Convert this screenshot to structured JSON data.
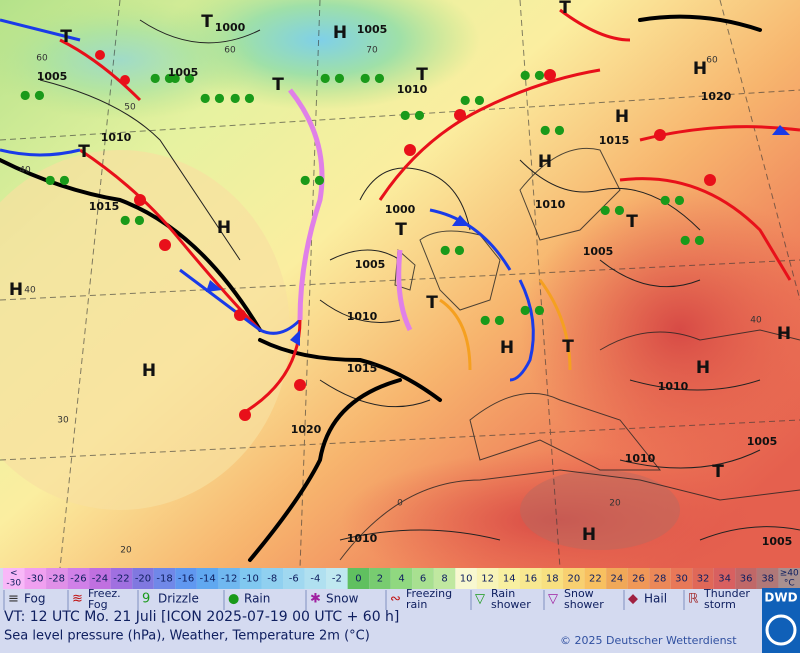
{
  "map": {
    "pressure_labels": [
      "1000",
      "1005",
      "1005",
      "1005",
      "1010",
      "1010",
      "1015",
      "1015",
      "1000",
      "1005",
      "1010",
      "1015",
      "1020",
      "1010",
      "1005",
      "1010",
      "1010",
      "1005",
      "1010",
      "1005",
      "1020"
    ],
    "temperature_labels": [
      "60",
      "60",
      "70",
      "50",
      "40",
      "40",
      "30",
      "20",
      "0",
      "20",
      "40",
      "60"
    ],
    "pressure_systems": [
      "T",
      "H",
      "T",
      "T",
      "T",
      "H",
      "H",
      "T",
      "H",
      "H",
      "T",
      "T",
      "H",
      "T",
      "H",
      "T",
      "H",
      "H",
      "H",
      "T",
      "H",
      "T"
    ]
  },
  "legend": {
    "scale": [
      {
        "label": "-30",
        "color": "#f0a0f0"
      },
      {
        "label": "-28",
        "color": "#e090e8"
      },
      {
        "label": "-26",
        "color": "#d080e8"
      },
      {
        "label": "-24",
        "color": "#c070e0"
      },
      {
        "label": "-22",
        "color": "#a070e0"
      },
      {
        "label": "-20",
        "color": "#8078e0"
      },
      {
        "label": "-18",
        "color": "#7088e8"
      },
      {
        "label": "-16",
        "color": "#6098f0"
      },
      {
        "label": "-14",
        "color": "#60a8f0"
      },
      {
        "label": "-12",
        "color": "#70b8f0"
      },
      {
        "label": "-10",
        "color": "#80c8f0"
      },
      {
        "label": "-8",
        "color": "#90d0f0"
      },
      {
        "label": "-6",
        "color": "#a0d8f0"
      },
      {
        "label": "-4",
        "color": "#b0e0f0"
      },
      {
        "label": "-2",
        "color": "#c0e8f0"
      },
      {
        "label": "0",
        "color": "#60c060"
      },
      {
        "label": "2",
        "color": "#78cc70"
      },
      {
        "label": "4",
        "color": "#90d880"
      },
      {
        "label": "6",
        "color": "#a8e090"
      },
      {
        "label": "8",
        "color": "#c0e8a0"
      },
      {
        "label": "10",
        "color": "#f8f8d0"
      },
      {
        "label": "12",
        "color": "#f8f4b8"
      },
      {
        "label": "14",
        "color": "#f8f0a0"
      },
      {
        "label": "16",
        "color": "#f8e890"
      },
      {
        "label": "18",
        "color": "#f8e080"
      },
      {
        "label": "20",
        "color": "#f8d070"
      },
      {
        "label": "22",
        "color": "#f8c060"
      },
      {
        "label": "24",
        "color": "#f0a858"
      },
      {
        "label": "26",
        "color": "#f09858"
      },
      {
        "label": "28",
        "color": "#ec8858"
      },
      {
        "label": "30",
        "color": "#e87858"
      },
      {
        "label": "32",
        "color": "#e06858"
      },
      {
        "label": "34",
        "color": "#d86060"
      },
      {
        "label": "36",
        "color": "#c06868"
      },
      {
        "label": "38",
        "color": "#b07878"
      }
    ],
    "low_end": {
      "top": "<",
      "bottom": "-30",
      "color": "#f8b8f8"
    },
    "high_end": {
      "top": "≥40",
      "bottom": "°C",
      "color": "#a89090"
    },
    "weather": [
      {
        "lines": [
          "Fog"
        ],
        "symbol": "≡",
        "color": "#333"
      },
      {
        "lines": [
          "Freez.",
          "Fog"
        ],
        "symbol": "≋",
        "color": "#c01010"
      },
      {
        "lines": [
          "Drizzle"
        ],
        "symbol": "9",
        "color": "#1a9a1a"
      },
      {
        "lines": [
          "Rain"
        ],
        "symbol": "●",
        "color": "#1a9a1a"
      },
      {
        "lines": [
          "Snow"
        ],
        "symbol": "✱",
        "color": "#a020a0"
      },
      {
        "lines": [
          "Freezing",
          "rain"
        ],
        "symbol": "∾",
        "color": "#c01010"
      },
      {
        "lines": [
          "Rain",
          "shower"
        ],
        "symbol": "▽",
        "color": "#1a9a1a"
      },
      {
        "lines": [
          "Snow",
          "shower"
        ],
        "symbol": "▽",
        "color": "#a020a0"
      },
      {
        "lines": [
          "Hail"
        ],
        "symbol": "◆",
        "color": "#a02040"
      },
      {
        "lines": [
          "Thunder",
          "storm"
        ],
        "symbol": "ℝ",
        "color": "#a02020"
      }
    ]
  },
  "footer": {
    "valid_time": "VT: 12 UTC Mo.  21 Juli [ICON 2025-07-19  00 UTC + 60 h]",
    "description": "Sea level pressure (hPa), Weather, Temperature 2m (°C)",
    "copyright": "© 2025 Deutscher Wetterdienst",
    "logo": "DWD"
  }
}
